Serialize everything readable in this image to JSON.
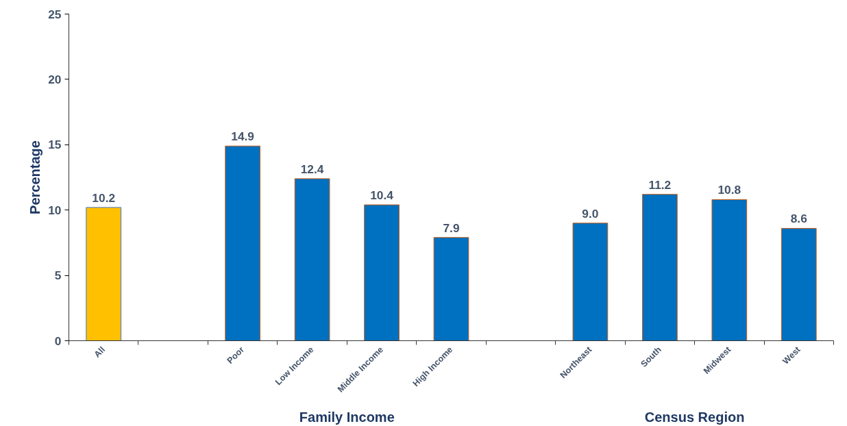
{
  "chart_data": {
    "type": "bar",
    "ylabel": "Percentage",
    "categories": [
      "All",
      null,
      "Poor",
      "Low Income",
      "Middle Income",
      "High Income",
      null,
      "Northeast",
      "South",
      "Midwest",
      "West"
    ],
    "values": [
      10.2,
      null,
      14.9,
      12.4,
      10.4,
      7.9,
      null,
      9.0,
      11.2,
      10.8,
      8.6
    ],
    "colors": [
      "#ffc000",
      "#0070c0",
      "#0070c0",
      "#0070c0",
      "#0070c0",
      "#0070c0",
      "#0070c0",
      "#0070c0",
      "#0070c0",
      "#0070c0",
      "#0070c0"
    ],
    "value_labels": [
      "10.2",
      null,
      "14.9",
      "12.4",
      "10.4",
      "7.9",
      null,
      "9.0",
      "11.2",
      "10.8",
      "8.6"
    ],
    "ylim": [
      0,
      25
    ],
    "yticks": [
      0,
      5,
      10,
      15,
      20,
      25
    ],
    "grid": false,
    "annotations": [
      "Family Income",
      "Census Region"
    ]
  }
}
